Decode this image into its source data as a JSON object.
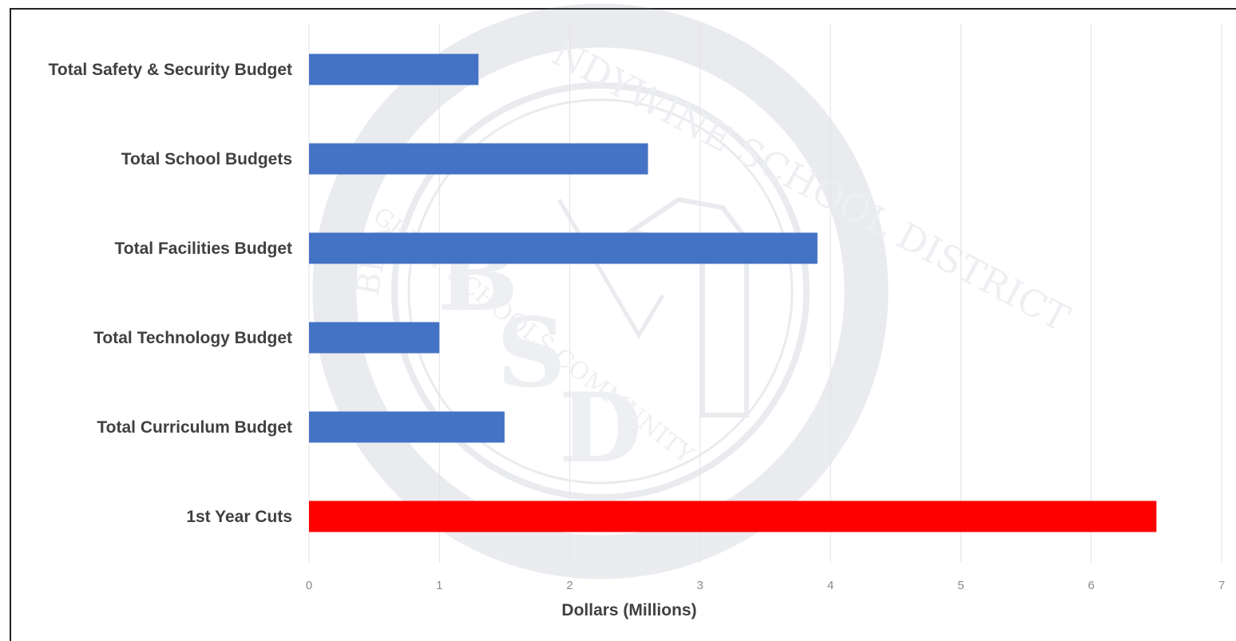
{
  "watermark": {
    "text_top": "NDYWINE SCHOOL DISTRICT",
    "text_left": "BRA",
    "text_bottom": "GREAT SCHOOLS COMMUNITY",
    "letters": [
      "B",
      "S",
      "D"
    ]
  },
  "chart_data": {
    "type": "bar",
    "orientation": "horizontal",
    "categories": [
      "Total Safety & Security Budget",
      "Total School Budgets",
      "Total Facilities Budget",
      "Total Technology Budget",
      "Total Curriculum Budget",
      "1st Year Cuts"
    ],
    "values": [
      1.3,
      2.6,
      3.9,
      1.0,
      1.5,
      6.5
    ],
    "colors": [
      "#4472c4",
      "#4472c4",
      "#4472c4",
      "#4472c4",
      "#4472c4",
      "#ff0000"
    ],
    "xlabel": "Dollars  (Millions)",
    "ylabel": "",
    "title": "",
    "xlim": [
      0,
      7
    ],
    "xticks": [
      "0",
      "1",
      "2",
      "3",
      "4",
      "5",
      "6",
      "7"
    ],
    "grid": "vertical",
    "legend": "none"
  }
}
